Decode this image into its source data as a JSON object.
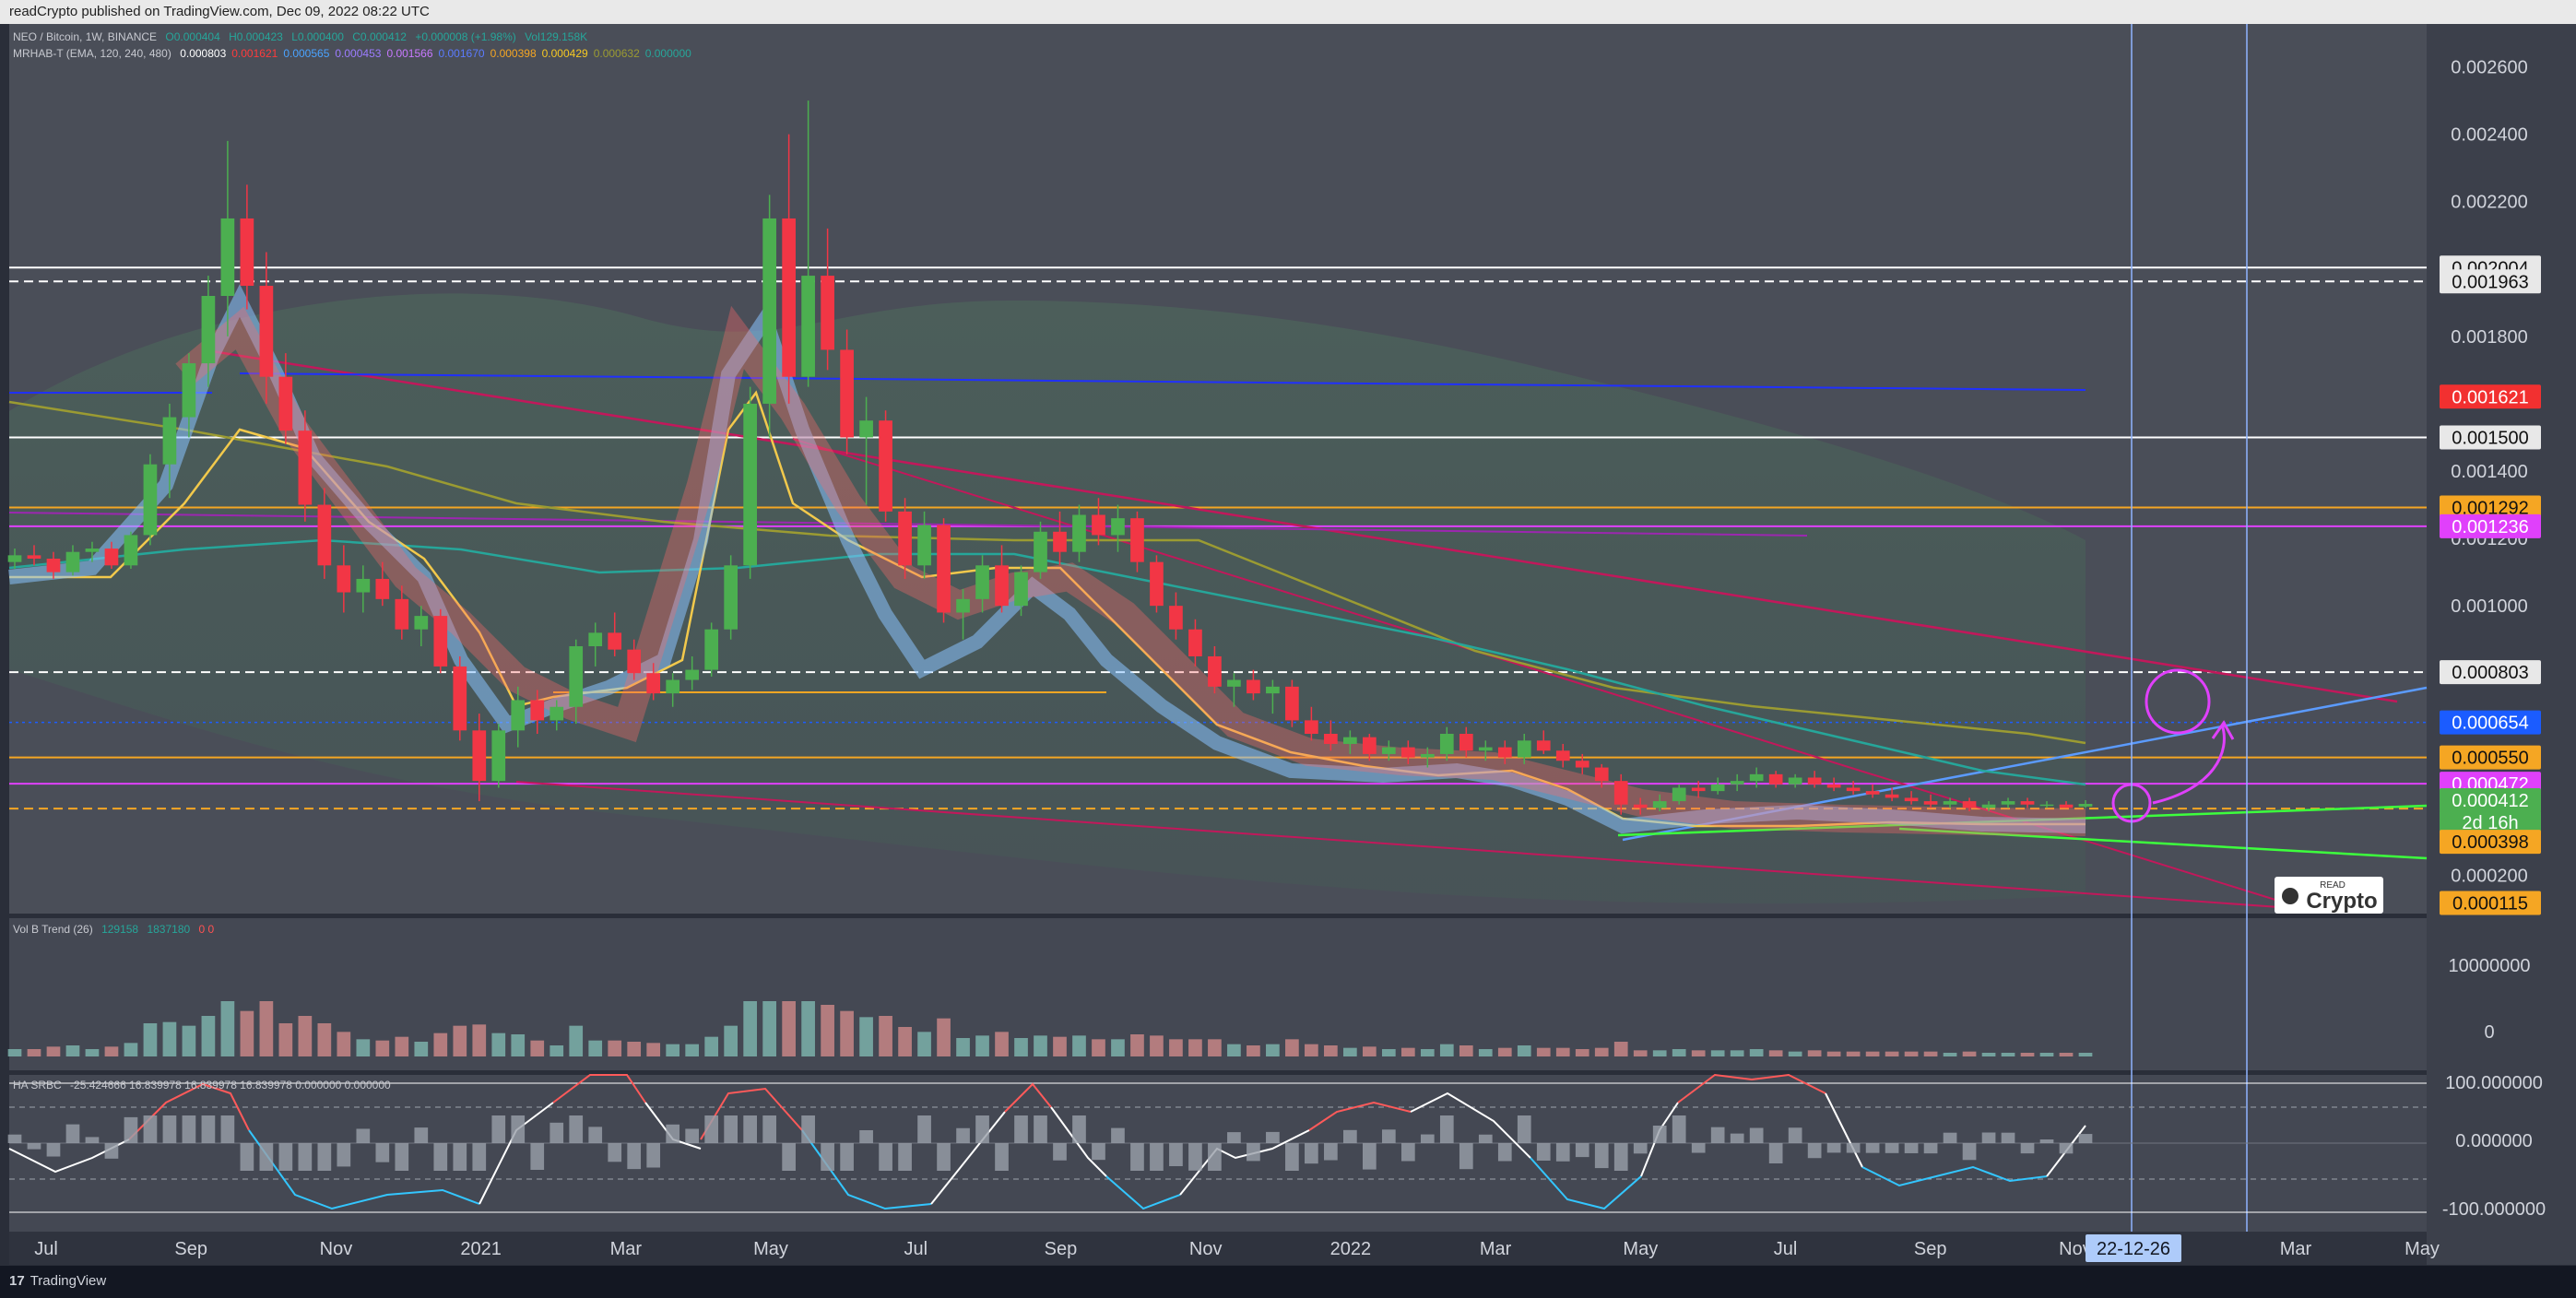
{
  "header": {
    "publish_line": "readCrypto published on TradingView.com, Dec 09, 2022 08:22 UTC"
  },
  "legend": {
    "symbol": "NEO / Bitcoin, 1W, BINANCE",
    "o": "O0.000404",
    "h": "H0.000423",
    "l": "L0.000400",
    "c": "C0.000412",
    "chg": "+0.000008 (+1.98%)",
    "vol": "Vol129.158K",
    "indicator": "MRHAB-T (EMA, 120, 240, 480)",
    "ind_values": [
      "0.000803",
      "0.001621",
      "0.000565",
      "0.000453",
      "0.001566",
      "0.001670",
      "0.000398",
      "0.000429",
      "0.000632",
      "0.000000"
    ],
    "ind_value_colors": [
      "#ffffff",
      "#ff3b3b",
      "#4aa3ff",
      "#9c7cff",
      "#c879ff",
      "#5b7bff",
      "#f5a623",
      "#f5c823",
      "#9b9b32",
      "#26a69a"
    ]
  },
  "volume_legend": {
    "name": "Vol B Trend (26)",
    "v1": "129158",
    "v2": "1837180",
    "v3": "0 0"
  },
  "ha_legend": {
    "name": "HA SRBC",
    "values": "-25.424666  16.839978  16.839978  16.839978  0.000000  0.000000"
  },
  "price_axis": {
    "ticks": [
      "0.002600",
      "0.002400",
      "0.002200",
      "0.001800",
      "0.001400",
      "0.001200",
      "0.001000",
      "0.000200"
    ],
    "tags": [
      {
        "text": "0.002004",
        "bg": "#e8e8e8",
        "fg": "#111111"
      },
      {
        "text": "0.001963",
        "bg": "#e8e8e8",
        "fg": "#111111"
      },
      {
        "text": "0.001621",
        "bg": "#f23030",
        "fg": "#ffffff"
      },
      {
        "text": "0.001500",
        "bg": "#e8e8e8",
        "fg": "#111111"
      },
      {
        "text": "0.001292",
        "bg": "#f5a623",
        "fg": "#111111"
      },
      {
        "text": "0.001236",
        "bg": "#e040fb",
        "fg": "#ffffff"
      },
      {
        "text": "0.000803",
        "bg": "#e8e8e8",
        "fg": "#111111"
      },
      {
        "text": "0.000654",
        "bg": "#1b5cff",
        "fg": "#ffffff"
      },
      {
        "text": "0.000550",
        "bg": "#f5a623",
        "fg": "#111111"
      },
      {
        "text": "0.000472",
        "bg": "#e040fb",
        "fg": "#ffffff"
      },
      {
        "text": "0.000412",
        "bg": "#4caf50",
        "fg": "#ffffff"
      },
      {
        "text": "2d 16h",
        "bg": "#4caf50",
        "fg": "#ffffff"
      },
      {
        "text": "0.000398",
        "bg": "#f5a623",
        "fg": "#111111"
      },
      {
        "text": "0.000115",
        "bg": "#f5a623",
        "fg": "#111111"
      }
    ]
  },
  "volume_axis": {
    "ticks": [
      "10000000",
      "0"
    ]
  },
  "ha_axis": {
    "ticks": [
      "100.000000",
      "0.000000",
      "-100.000000"
    ]
  },
  "time_axis": {
    "labels": [
      "Jul",
      "Sep",
      "Nov",
      "2021",
      "Mar",
      "May",
      "Jul",
      "Sep",
      "Nov",
      "2022",
      "Mar",
      "May",
      "Jul",
      "Sep",
      "Nov",
      "Mar",
      "May"
    ],
    "highlight": "22-12-26"
  },
  "watermark": {
    "top": "READ",
    "main": "Crypto"
  },
  "footer": {
    "brand": "TradingView"
  },
  "chart_data": {
    "type": "candlestick",
    "symbol": "NEO / Bitcoin",
    "interval": "1W",
    "ylim": [
      0.0001,
      0.0027
    ],
    "candles": [
      [
        0.00113,
        0.00117,
        0.00111,
        0.00115
      ],
      [
        0.00115,
        0.00118,
        0.00112,
        0.00114
      ],
      [
        0.00114,
        0.00116,
        0.00108,
        0.0011
      ],
      [
        0.0011,
        0.00118,
        0.00109,
        0.00116
      ],
      [
        0.00116,
        0.00119,
        0.00113,
        0.00117
      ],
      [
        0.00117,
        0.00119,
        0.00111,
        0.00112
      ],
      [
        0.00112,
        0.00122,
        0.00111,
        0.00121
      ],
      [
        0.00121,
        0.00145,
        0.00118,
        0.00142
      ],
      [
        0.00142,
        0.0016,
        0.00132,
        0.00156
      ],
      [
        0.00156,
        0.00175,
        0.0015,
        0.00172
      ],
      [
        0.00172,
        0.00198,
        0.00165,
        0.00192
      ],
      [
        0.00192,
        0.00238,
        0.0018,
        0.00215
      ],
      [
        0.00215,
        0.00225,
        0.00188,
        0.00195
      ],
      [
        0.00195,
        0.00205,
        0.0016,
        0.00168
      ],
      [
        0.00168,
        0.00175,
        0.00148,
        0.00152
      ],
      [
        0.00152,
        0.00158,
        0.00125,
        0.0013
      ],
      [
        0.0013,
        0.00135,
        0.00108,
        0.00112
      ],
      [
        0.00112,
        0.00118,
        0.00098,
        0.00104
      ],
      [
        0.00104,
        0.00112,
        0.00098,
        0.00108
      ],
      [
        0.00108,
        0.00113,
        0.001,
        0.00102
      ],
      [
        0.00102,
        0.00106,
        0.0009,
        0.00093
      ],
      [
        0.00093,
        0.001,
        0.00088,
        0.00097
      ],
      [
        0.00097,
        0.00099,
        0.0008,
        0.00082
      ],
      [
        0.00082,
        0.00085,
        0.0006,
        0.00063
      ],
      [
        0.00063,
        0.00068,
        0.00042,
        0.00048
      ],
      [
        0.00048,
        0.00065,
        0.00046,
        0.00063
      ],
      [
        0.00063,
        0.00076,
        0.00058,
        0.00072
      ],
      [
        0.00072,
        0.00075,
        0.00062,
        0.00066
      ],
      [
        0.00066,
        0.00072,
        0.00063,
        0.0007
      ],
      [
        0.0007,
        0.0009,
        0.00065,
        0.00088
      ],
      [
        0.00088,
        0.00095,
        0.00082,
        0.00092
      ],
      [
        0.00092,
        0.00098,
        0.00085,
        0.00087
      ],
      [
        0.00087,
        0.0009,
        0.00078,
        0.0008
      ],
      [
        0.0008,
        0.00083,
        0.00072,
        0.00074
      ],
      [
        0.00074,
        0.0008,
        0.0007,
        0.00078
      ],
      [
        0.00078,
        0.00085,
        0.00075,
        0.00081
      ],
      [
        0.00081,
        0.00095,
        0.00079,
        0.00093
      ],
      [
        0.00093,
        0.00115,
        0.0009,
        0.00112
      ],
      [
        0.00112,
        0.00165,
        0.00108,
        0.0016
      ],
      [
        0.0016,
        0.00222,
        0.0015,
        0.00215
      ],
      [
        0.00215,
        0.0024,
        0.0016,
        0.00168
      ],
      [
        0.00168,
        0.0025,
        0.00165,
        0.00198
      ],
      [
        0.00198,
        0.00212,
        0.0017,
        0.00176
      ],
      [
        0.00176,
        0.00182,
        0.00145,
        0.0015
      ],
      [
        0.0015,
        0.00162,
        0.0013,
        0.00155
      ],
      [
        0.00155,
        0.00158,
        0.00125,
        0.00128
      ],
      [
        0.00128,
        0.00132,
        0.00108,
        0.00112
      ],
      [
        0.00112,
        0.00128,
        0.00108,
        0.00124
      ],
      [
        0.00124,
        0.00126,
        0.00095,
        0.00098
      ],
      [
        0.00098,
        0.00105,
        0.0009,
        0.00102
      ],
      [
        0.00102,
        0.00115,
        0.00098,
        0.00112
      ],
      [
        0.00112,
        0.00118,
        0.00098,
        0.001
      ],
      [
        0.001,
        0.00112,
        0.00097,
        0.0011
      ],
      [
        0.0011,
        0.00125,
        0.00108,
        0.00122
      ],
      [
        0.00122,
        0.00128,
        0.00112,
        0.00116
      ],
      [
        0.00116,
        0.0013,
        0.00113,
        0.00127
      ],
      [
        0.00127,
        0.00132,
        0.00118,
        0.00121
      ],
      [
        0.00121,
        0.0013,
        0.00116,
        0.00126
      ],
      [
        0.00126,
        0.00128,
        0.0011,
        0.00113
      ],
      [
        0.00113,
        0.00115,
        0.00098,
        0.001
      ],
      [
        0.001,
        0.00104,
        0.0009,
        0.00093
      ],
      [
        0.00093,
        0.00096,
        0.00082,
        0.00085
      ],
      [
        0.00085,
        0.00088,
        0.00074,
        0.00076
      ],
      [
        0.00076,
        0.0008,
        0.0007,
        0.00078
      ],
      [
        0.00078,
        0.00081,
        0.00072,
        0.00074
      ],
      [
        0.00074,
        0.00078,
        0.00068,
        0.00076
      ],
      [
        0.00076,
        0.00078,
        0.00064,
        0.00066
      ],
      [
        0.00066,
        0.0007,
        0.0006,
        0.00062
      ],
      [
        0.00062,
        0.00066,
        0.00057,
        0.00059
      ],
      [
        0.00059,
        0.00063,
        0.00056,
        0.00061
      ],
      [
        0.00061,
        0.00062,
        0.00054,
        0.00056
      ],
      [
        0.00056,
        0.0006,
        0.00054,
        0.00058
      ],
      [
        0.00058,
        0.0006,
        0.00053,
        0.00055
      ],
      [
        0.00055,
        0.00058,
        0.00052,
        0.00056
      ],
      [
        0.00056,
        0.00064,
        0.00054,
        0.00062
      ],
      [
        0.00062,
        0.00064,
        0.00055,
        0.00057
      ],
      [
        0.00057,
        0.0006,
        0.00054,
        0.00058
      ],
      [
        0.00058,
        0.0006,
        0.00053,
        0.00055
      ],
      [
        0.00055,
        0.00062,
        0.00053,
        0.0006
      ],
      [
        0.0006,
        0.00063,
        0.00056,
        0.00057
      ],
      [
        0.00057,
        0.00059,
        0.00052,
        0.00054
      ],
      [
        0.00054,
        0.00056,
        0.0005,
        0.00052
      ],
      [
        0.00052,
        0.00053,
        0.00046,
        0.00048
      ],
      [
        0.00048,
        0.0005,
        0.00038,
        0.00041
      ],
      [
        0.00041,
        0.00043,
        0.00038,
        0.0004
      ],
      [
        0.0004,
        0.00044,
        0.00039,
        0.00042
      ],
      [
        0.00042,
        0.00047,
        0.00041,
        0.00046
      ],
      [
        0.00046,
        0.00048,
        0.00043,
        0.00045
      ],
      [
        0.00045,
        0.00049,
        0.00044,
        0.00047
      ],
      [
        0.00047,
        0.0005,
        0.00045,
        0.00048
      ],
      [
        0.00048,
        0.00052,
        0.00046,
        0.0005
      ],
      [
        0.0005,
        0.00051,
        0.00046,
        0.00047
      ],
      [
        0.00047,
        0.0005,
        0.00046,
        0.00049
      ],
      [
        0.00049,
        0.00051,
        0.00046,
        0.00047
      ],
      [
        0.00047,
        0.00049,
        0.00045,
        0.00046
      ],
      [
        0.00046,
        0.00048,
        0.00044,
        0.00045
      ],
      [
        0.00045,
        0.00047,
        0.00043,
        0.00044
      ],
      [
        0.00044,
        0.00046,
        0.00042,
        0.00043
      ],
      [
        0.00043,
        0.00045,
        0.00041,
        0.00042
      ],
      [
        0.00042,
        0.00044,
        0.0004,
        0.00041
      ],
      [
        0.00041,
        0.00043,
        0.0004,
        0.00042
      ],
      [
        0.00042,
        0.00043,
        0.00039,
        0.0004
      ],
      [
        0.0004,
        0.00042,
        0.00039,
        0.00041
      ],
      [
        0.00041,
        0.00043,
        0.0004,
        0.00042
      ],
      [
        0.00042,
        0.00043,
        0.0004,
        0.00041
      ],
      [
        0.00041,
        0.00042,
        0.0004,
        0.00041
      ],
      [
        0.00041,
        0.00042,
        0.0004,
        0.0004
      ],
      [
        0.000404,
        0.000423,
        0.0004,
        0.000412
      ]
    ],
    "hlines": [
      {
        "y": 0.002004,
        "color": "#ffffff",
        "style": "solid"
      },
      {
        "y": 0.001963,
        "color": "#ffffff",
        "style": "dashed"
      },
      {
        "y": 0.0015,
        "color": "#ffffff",
        "style": "solid"
      },
      {
        "y": 0.001292,
        "color": "#f5a623",
        "style": "solid"
      },
      {
        "y": 0.001236,
        "color": "#e040fb",
        "style": "solid"
      },
      {
        "y": 0.000803,
        "color": "#ffffff",
        "style": "dashed"
      },
      {
        "y": 0.000654,
        "color": "#1b5cff",
        "style": "dotted"
      },
      {
        "y": 0.00055,
        "color": "#f5a623",
        "style": "solid"
      },
      {
        "y": 0.000472,
        "color": "#e040fb",
        "style": "solid"
      },
      {
        "y": 0.000398,
        "color": "#f5a623",
        "style": "dashed"
      }
    ],
    "volume_ylim": [
      0,
      15000000
    ],
    "ha_ylim": [
      -110,
      110
    ]
  }
}
